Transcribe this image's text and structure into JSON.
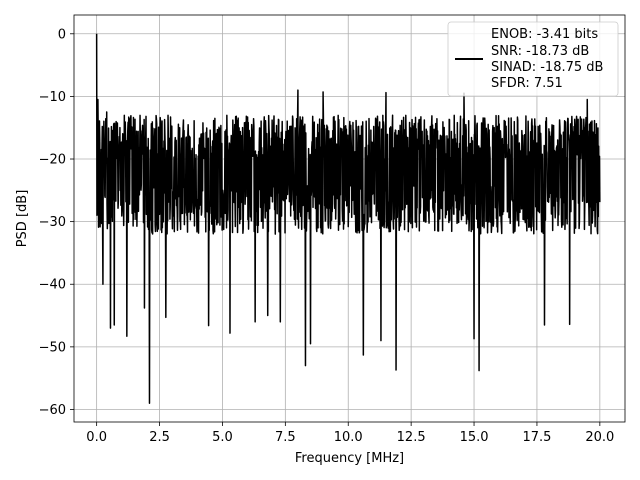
{
  "chart_data": {
    "type": "line",
    "xlabel": "Frequency [MHz]",
    "ylabel": "PSD [dB]",
    "xlim": [
      -0.9,
      21.0
    ],
    "ylim": [
      -62,
      3
    ],
    "grid": true,
    "legend_position": "top-right",
    "xticks": [
      0.0,
      2.5,
      5.0,
      7.5,
      10.0,
      12.5,
      15.0,
      17.5,
      20.0
    ],
    "xtick_labels": [
      "0.0",
      "2.5",
      "5.0",
      "7.5",
      "10.0",
      "12.5",
      "15.0",
      "17.5",
      "20.0"
    ],
    "yticks": [
      0,
      -10,
      -20,
      -30,
      -40,
      -50,
      -60
    ],
    "ytick_labels": [
      "0",
      "−10",
      "−20",
      "−30",
      "−40",
      "−50",
      "−60"
    ],
    "legend_lines": [
      "ENOB: -3.41 bits",
      "SNR: -18.73 dB",
      "SINAD: -18.75 dB",
      "SFDR: 7.51"
    ],
    "series": [
      {
        "color": "#000000",
        "x_start": 0.0,
        "x_end": 20.0,
        "dc_value": 0.0,
        "typical_upper": -13,
        "typical_lower": -32,
        "peaks": [
          {
            "x": 0.05,
            "y": -10.5
          },
          {
            "x": 0.4,
            "y": -12.5
          },
          {
            "x": 1.35,
            "y": -13.5
          },
          {
            "x": 4.7,
            "y": -13.5
          },
          {
            "x": 6.8,
            "y": -8.1
          },
          {
            "x": 7.3,
            "y": -8.6
          },
          {
            "x": 8.0,
            "y": -9.0
          },
          {
            "x": 9.0,
            "y": -9.3
          },
          {
            "x": 11.5,
            "y": -9.4
          },
          {
            "x": 14.6,
            "y": -9.5
          },
          {
            "x": 19.5,
            "y": -10.5
          }
        ],
        "dips": [
          {
            "x": 0.25,
            "y": -40.0
          },
          {
            "x": 0.55,
            "y": -47.0
          },
          {
            "x": 0.7,
            "y": -46.5
          },
          {
            "x": 1.2,
            "y": -48.3
          },
          {
            "x": 1.9,
            "y": -43.8
          },
          {
            "x": 2.1,
            "y": -59.0
          },
          {
            "x": 2.75,
            "y": -45.3
          },
          {
            "x": 4.45,
            "y": -46.6
          },
          {
            "x": 5.3,
            "y": -47.8
          },
          {
            "x": 6.3,
            "y": -46.0
          },
          {
            "x": 6.8,
            "y": -45.0
          },
          {
            "x": 7.3,
            "y": -46.0
          },
          {
            "x": 8.3,
            "y": -53.0
          },
          {
            "x": 8.5,
            "y": -49.5
          },
          {
            "x": 10.6,
            "y": -51.3
          },
          {
            "x": 11.3,
            "y": -49.0
          },
          {
            "x": 11.9,
            "y": -53.7
          },
          {
            "x": 15.0,
            "y": -48.7
          },
          {
            "x": 15.2,
            "y": -53.8
          },
          {
            "x": 17.8,
            "y": -46.5
          },
          {
            "x": 18.8,
            "y": -46.4
          }
        ]
      }
    ]
  }
}
